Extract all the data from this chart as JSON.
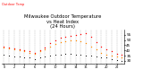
{
  "title": "Milwaukee Outdoor Temperature\nvs Heat Index\n(24 Hours)",
  "title_fontsize": 3.8,
  "bg_color": "#ffffff",
  "plot_bg": "#ffffff",
  "ylim": [
    27,
    60
  ],
  "yticks": [
    30,
    35,
    40,
    45,
    50,
    55
  ],
  "hours": [
    0,
    1,
    2,
    3,
    4,
    5,
    6,
    7,
    8,
    9,
    10,
    11,
    12,
    13,
    14,
    15,
    16,
    17,
    18,
    19,
    20,
    21,
    22,
    23
  ],
  "temp": [
    44,
    43,
    42,
    41,
    40,
    39,
    38,
    40,
    43,
    47,
    50,
    52,
    53,
    54,
    55,
    56,
    57,
    53,
    48,
    44,
    41,
    39,
    37,
    36
  ],
  "heat_index": [
    43,
    42,
    41,
    40,
    39,
    38,
    37,
    39,
    41,
    44,
    46,
    48,
    49,
    50,
    50,
    49,
    47,
    44,
    41,
    38,
    36,
    35,
    34,
    33
  ],
  "dew": [
    36,
    35,
    34,
    34,
    33,
    33,
    32,
    33,
    34,
    35,
    36,
    36,
    37,
    37,
    36,
    36,
    35,
    35,
    34,
    33,
    33,
    32,
    31,
    30
  ],
  "temp_color": "#ff0000",
  "heat_color": "#ff8800",
  "dew_color": "#000000",
  "grid_color": "#999999",
  "legend_line_color": "#ff0000",
  "xtick_fontsize": 2.5,
  "ytick_fontsize": 3.0,
  "marker_size": 1.0,
  "dew_marker_size": 0.8
}
